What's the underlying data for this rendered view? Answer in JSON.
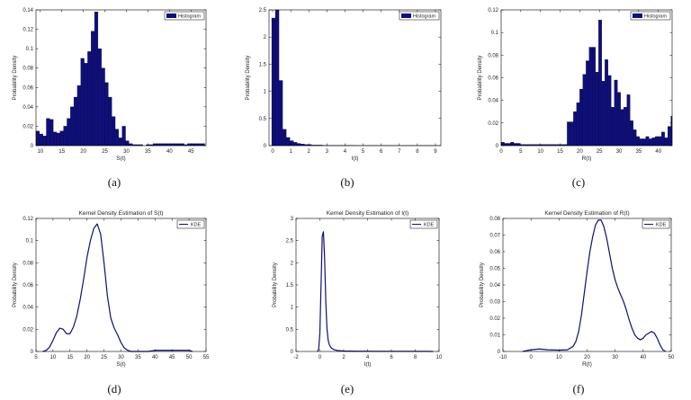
{
  "chart_data": [
    {
      "id": "a",
      "type": "bar",
      "caption": "(a)",
      "title": "",
      "xlabel": "S(t)",
      "ylabel": "Probability Density",
      "legend": {
        "label": "Histogram",
        "placement": "top-right"
      },
      "xlim": [
        9,
        48.5
      ],
      "ylim": [
        0,
        0.14
      ],
      "xticks": [
        10,
        15,
        20,
        25,
        30,
        35,
        40,
        45
      ],
      "yticks": [
        0,
        0.02,
        0.04,
        0.06,
        0.08,
        0.1,
        0.12,
        0.14
      ],
      "bin_width": 0.8,
      "bins": [
        [
          9.0,
          0.015
        ],
        [
          9.8,
          0.012
        ],
        [
          10.6,
          0.01
        ],
        [
          11.4,
          0.028
        ],
        [
          12.2,
          0.027
        ],
        [
          13.0,
          0.014
        ],
        [
          13.8,
          0.013
        ],
        [
          14.6,
          0.015
        ],
        [
          15.4,
          0.02
        ],
        [
          16.2,
          0.028
        ],
        [
          17.0,
          0.04
        ],
        [
          17.8,
          0.05
        ],
        [
          18.6,
          0.062
        ],
        [
          19.4,
          0.09
        ],
        [
          20.2,
          0.085
        ],
        [
          21.0,
          0.097
        ],
        [
          21.8,
          0.118
        ],
        [
          22.6,
          0.138
        ],
        [
          23.4,
          0.1
        ],
        [
          24.2,
          0.08
        ],
        [
          25.0,
          0.065
        ],
        [
          25.8,
          0.05
        ],
        [
          26.6,
          0.03
        ],
        [
          27.4,
          0.017
        ],
        [
          28.2,
          0.008
        ],
        [
          29.0,
          0.02
        ],
        [
          29.8,
          0.005
        ],
        [
          30.6,
          0.002
        ],
        [
          31.4,
          0.001
        ],
        [
          32.2,
          0.001
        ],
        [
          33.0,
          0.001
        ],
        [
          33.8,
          0.0
        ],
        [
          34.6,
          0.001
        ],
        [
          35.4,
          0.001
        ],
        [
          36.2,
          0.002
        ],
        [
          37.0,
          0.002
        ],
        [
          37.8,
          0.002
        ],
        [
          38.6,
          0.002
        ],
        [
          39.4,
          0.002
        ],
        [
          40.2,
          0.002
        ],
        [
          41.0,
          0.002
        ],
        [
          41.8,
          0.002
        ],
        [
          42.6,
          0.002
        ],
        [
          43.4,
          0.001
        ],
        [
          44.2,
          0.002
        ],
        [
          45.0,
          0.002
        ],
        [
          45.8,
          0.002
        ],
        [
          46.6,
          0.002
        ],
        [
          47.4,
          0.002
        ]
      ]
    },
    {
      "id": "b",
      "type": "bar",
      "caption": "(b)",
      "title": "",
      "xlabel": "I(t)",
      "ylabel": "Probability Density",
      "legend": {
        "label": "Histogram",
        "placement": "top-right"
      },
      "xlim": [
        -0.2,
        9.3
      ],
      "ylim": [
        0,
        2.5
      ],
      "xticks": [
        0,
        1,
        2,
        3,
        4,
        5,
        6,
        7,
        8,
        9
      ],
      "yticks": [
        0,
        0.5,
        1,
        1.5,
        2,
        2.5
      ],
      "bin_width": 0.2,
      "bins": [
        [
          -0.05,
          2.35
        ],
        [
          0.15,
          2.5
        ],
        [
          0.35,
          1.2
        ],
        [
          0.55,
          0.3
        ],
        [
          0.75,
          0.15
        ],
        [
          0.95,
          0.09
        ],
        [
          1.15,
          0.06
        ],
        [
          1.35,
          0.04
        ],
        [
          1.55,
          0.03
        ],
        [
          1.75,
          0.02
        ],
        [
          1.95,
          0.02
        ],
        [
          2.15,
          0.01
        ],
        [
          2.35,
          0.01
        ],
        [
          2.55,
          0.01
        ],
        [
          2.75,
          0.005
        ],
        [
          2.95,
          0.005
        ],
        [
          3.15,
          0.005
        ],
        [
          3.35,
          0.005
        ],
        [
          3.55,
          0.003
        ],
        [
          3.75,
          0.003
        ],
        [
          3.95,
          0.003
        ],
        [
          4.15,
          0.003
        ],
        [
          4.35,
          0.003
        ],
        [
          4.55,
          0.002
        ],
        [
          4.75,
          0.002
        ],
        [
          4.95,
          0.002
        ],
        [
          5.15,
          0.002
        ],
        [
          5.35,
          0.002
        ],
        [
          5.55,
          0.002
        ],
        [
          5.75,
          0.002
        ],
        [
          5.95,
          0.002
        ],
        [
          6.15,
          0.002
        ],
        [
          6.35,
          0.002
        ],
        [
          6.55,
          0.002
        ],
        [
          6.75,
          0.002
        ],
        [
          6.95,
          0.002
        ],
        [
          7.15,
          0.002
        ],
        [
          7.35,
          0.002
        ],
        [
          7.55,
          0.002
        ],
        [
          7.75,
          0.002
        ],
        [
          7.95,
          0.002
        ],
        [
          8.15,
          0.002
        ],
        [
          8.35,
          0.002
        ],
        [
          8.55,
          0.002
        ],
        [
          8.75,
          0.002
        ],
        [
          8.95,
          0.002
        ]
      ]
    },
    {
      "id": "c",
      "type": "bar",
      "caption": "(c)",
      "title": "",
      "xlabel": "R(t)",
      "ylabel": "Probability Density",
      "legend": {
        "label": "Histogram",
        "placement": "top-right"
      },
      "xlim": [
        0,
        43.5
      ],
      "ylim": [
        0,
        0.12
      ],
      "xticks": [
        0,
        5,
        10,
        15,
        20,
        25,
        30,
        35,
        40
      ],
      "yticks": [
        0,
        0.02,
        0.04,
        0.06,
        0.08,
        0.1,
        0.12
      ],
      "bin_width": 0.8,
      "bins": [
        [
          0.0,
          0.003
        ],
        [
          0.8,
          0.002
        ],
        [
          1.6,
          0.002
        ],
        [
          2.4,
          0.003
        ],
        [
          3.2,
          0.002
        ],
        [
          4.0,
          0.002
        ],
        [
          4.8,
          0.001
        ],
        [
          5.6,
          0.001
        ],
        [
          6.4,
          0.001
        ],
        [
          7.2,
          0.001
        ],
        [
          8.0,
          0.001
        ],
        [
          8.8,
          0.001
        ],
        [
          9.6,
          0.001
        ],
        [
          10.4,
          0.001
        ],
        [
          11.2,
          0.001
        ],
        [
          12.0,
          0.001
        ],
        [
          12.8,
          0.001
        ],
        [
          13.6,
          0.001
        ],
        [
          14.4,
          0.001
        ],
        [
          15.2,
          0.001
        ],
        [
          16.0,
          0.001
        ],
        [
          16.8,
          0.021
        ],
        [
          17.6,
          0.021
        ],
        [
          18.4,
          0.03
        ],
        [
          19.2,
          0.038
        ],
        [
          20.0,
          0.05
        ],
        [
          20.8,
          0.063
        ],
        [
          21.6,
          0.075
        ],
        [
          22.4,
          0.087
        ],
        [
          23.2,
          0.087
        ],
        [
          24.0,
          0.065
        ],
        [
          24.8,
          0.111
        ],
        [
          25.6,
          0.057
        ],
        [
          26.4,
          0.076
        ],
        [
          27.2,
          0.062
        ],
        [
          28.0,
          0.034
        ],
        [
          28.8,
          0.058
        ],
        [
          29.6,
          0.047
        ],
        [
          30.4,
          0.032
        ],
        [
          31.2,
          0.034
        ],
        [
          32.0,
          0.045
        ],
        [
          32.8,
          0.022
        ],
        [
          33.6,
          0.014
        ],
        [
          34.4,
          0.008
        ],
        [
          35.2,
          0.006
        ],
        [
          36.0,
          0.006
        ],
        [
          36.8,
          0.008
        ],
        [
          37.6,
          0.006
        ],
        [
          38.4,
          0.007
        ],
        [
          39.2,
          0.008
        ],
        [
          40.0,
          0.008
        ],
        [
          40.8,
          0.012
        ],
        [
          41.6,
          0.007
        ],
        [
          42.4,
          0.017
        ],
        [
          43.2,
          0.026
        ]
      ]
    },
    {
      "id": "d",
      "type": "line",
      "caption": "(d)",
      "title": "Kernel Density Estimation of S(t)",
      "xlabel": "S(t)",
      "ylabel": "Probability Density",
      "legend": {
        "label": "KDE",
        "placement": "top-right"
      },
      "xlim": [
        5,
        55
      ],
      "ylim": [
        0,
        0.12
      ],
      "xticks": [
        5,
        10,
        15,
        20,
        25,
        30,
        35,
        40,
        45,
        50,
        55
      ],
      "yticks": [
        0,
        0.02,
        0.04,
        0.06,
        0.08,
        0.1,
        0.12
      ],
      "x": [
        7,
        8,
        9,
        10,
        11,
        12,
        13,
        14,
        15,
        16,
        17,
        18,
        19,
        20,
        21,
        22,
        23,
        24,
        25,
        26,
        27,
        28,
        29,
        30,
        31,
        32,
        33,
        35,
        38,
        40,
        45,
        50,
        51
      ],
      "y": [
        0.0,
        0.001,
        0.004,
        0.01,
        0.017,
        0.021,
        0.02,
        0.016,
        0.016,
        0.022,
        0.032,
        0.047,
        0.065,
        0.085,
        0.1,
        0.111,
        0.115,
        0.106,
        0.08,
        0.05,
        0.03,
        0.021,
        0.015,
        0.008,
        0.003,
        0.001,
        0.0,
        0.0,
        0.0,
        0.001,
        0.001,
        0.001,
        0.0
      ]
    },
    {
      "id": "e",
      "type": "line",
      "caption": "(e)",
      "title": "Kernel Density Estimation of I(t)",
      "xlabel": "I(t)",
      "ylabel": "Probability Density",
      "legend": {
        "label": "KDE",
        "placement": "top-right"
      },
      "xlim": [
        -2,
        10
      ],
      "ylim": [
        0,
        3
      ],
      "xticks": [
        -2,
        0,
        2,
        4,
        6,
        8,
        10
      ],
      "yticks": [
        0,
        0.5,
        1,
        1.5,
        2,
        2.5,
        3
      ],
      "x": [
        -0.2,
        -0.1,
        0.0,
        0.1,
        0.2,
        0.3,
        0.4,
        0.5,
        0.6,
        0.7,
        0.8,
        0.9,
        1.0,
        1.2,
        1.5,
        2.0,
        3.0,
        5.0,
        7.0,
        9.0,
        9.5
      ],
      "y": [
        0.0,
        0.05,
        0.4,
        1.5,
        2.6,
        2.7,
        2.1,
        1.1,
        0.5,
        0.25,
        0.15,
        0.1,
        0.07,
        0.04,
        0.02,
        0.01,
        0.005,
        0.003,
        0.003,
        0.002,
        0.0
      ]
    },
    {
      "id": "f",
      "type": "line",
      "caption": "(f)",
      "title": "Kernel Density Estimation of R(t)",
      "xlabel": "R(t)",
      "ylabel": "Probability Density",
      "legend": {
        "label": "KDE",
        "placement": "top-right"
      },
      "xlim": [
        -10,
        50
      ],
      "ylim": [
        0,
        0.08
      ],
      "xticks": [
        -10,
        0,
        10,
        20,
        30,
        40,
        50
      ],
      "yticks": [
        0,
        0.01,
        0.02,
        0.03,
        0.04,
        0.05,
        0.06,
        0.07,
        0.08
      ],
      "x": [
        -3,
        0,
        3,
        6,
        10,
        13,
        15,
        16,
        17,
        18,
        19,
        20,
        21,
        22,
        23,
        24,
        25,
        26,
        27,
        28,
        29,
        30,
        31,
        32,
        33,
        34,
        35,
        36,
        37,
        38,
        39,
        40,
        41,
        42,
        43,
        44,
        45,
        46,
        47,
        48
      ],
      "y": [
        0.0,
        0.001,
        0.0015,
        0.001,
        0.0008,
        0.001,
        0.003,
        0.006,
        0.012,
        0.022,
        0.035,
        0.048,
        0.06,
        0.069,
        0.076,
        0.079,
        0.079,
        0.075,
        0.068,
        0.059,
        0.05,
        0.043,
        0.038,
        0.034,
        0.03,
        0.025,
        0.019,
        0.014,
        0.01,
        0.008,
        0.007,
        0.008,
        0.01,
        0.011,
        0.012,
        0.011,
        0.008,
        0.004,
        0.001,
        0.0
      ]
    }
  ]
}
